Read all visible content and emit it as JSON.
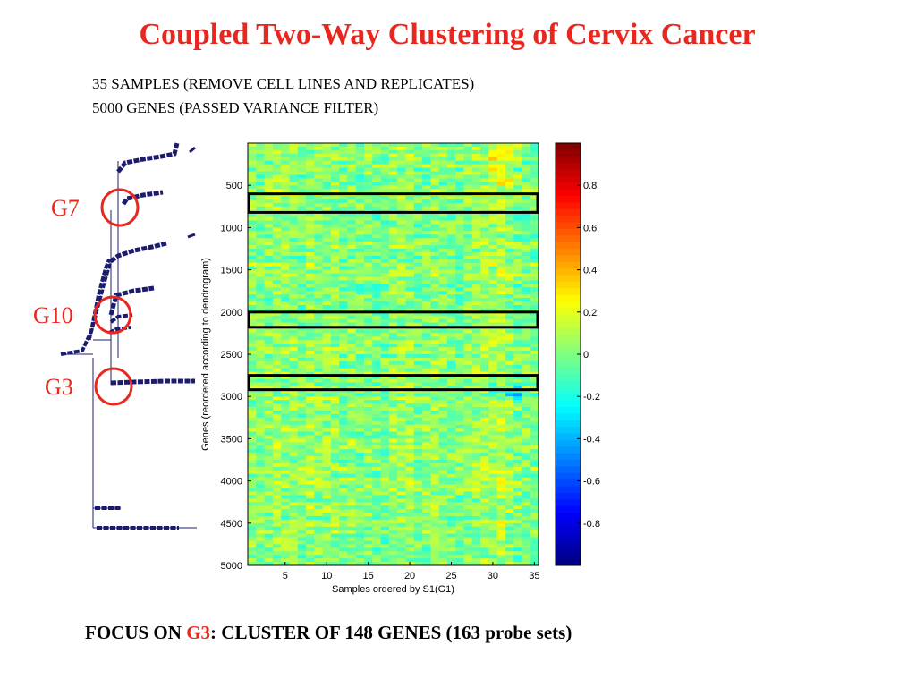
{
  "title": "Coupled Two-Way Clustering of Cervix Cancer",
  "subtitle_lines": [
    "35 SAMPLES (REMOVE CELL LINES AND REPLICATES)",
    "5000 GENES (PASSED VARIANCE FILTER)"
  ],
  "footer": {
    "prefix": "FOCUS ON ",
    "highlight": "G3",
    "suffix": ": CLUSTER OF 148 GENES (163 probe sets)"
  },
  "cluster_labels": [
    {
      "name": "G7",
      "gene_position": 700
    },
    {
      "name": "G10",
      "gene_position": 2100
    },
    {
      "name": "G3",
      "gene_position": 2850
    }
  ],
  "colors": {
    "title": "#e8271f",
    "highlight": "#e8271f",
    "circle": "#e8271f",
    "dendrogram": "#1c1c6e",
    "box": "#000000"
  },
  "chart_data": {
    "type": "heatmap",
    "xlabel": "Samples ordered by S1(G1)",
    "ylabel": "Genes (reordered according to dendrogram)",
    "x_ticks": [
      5,
      10,
      15,
      20,
      25,
      30,
      35
    ],
    "y_ticks": [
      500,
      1000,
      1500,
      2000,
      2500,
      3000,
      3500,
      4000,
      4500,
      5000
    ],
    "xlim": [
      0.5,
      35.5
    ],
    "ylim": [
      0,
      5000
    ],
    "samples": 35,
    "genes": 5000,
    "colorbar": {
      "ticks": [
        "0.8",
        "0.6",
        "0.4",
        "0.2",
        "0",
        "-0.2",
        "-0.4",
        "-0.6",
        "-0.8"
      ],
      "tick_values": [
        0.8,
        0.6,
        0.4,
        0.2,
        0,
        -0.2,
        -0.4,
        -0.6,
        -0.8
      ],
      "range": [
        -1,
        1
      ],
      "colormap": "jet"
    },
    "highlighted_clusters": [
      {
        "name": "G7",
        "gene_range": [
          600,
          820
        ]
      },
      {
        "name": "G10",
        "gene_range": [
          2000,
          2180
        ]
      },
      {
        "name": "G3",
        "gene_range": [
          2750,
          2920
        ]
      }
    ]
  }
}
